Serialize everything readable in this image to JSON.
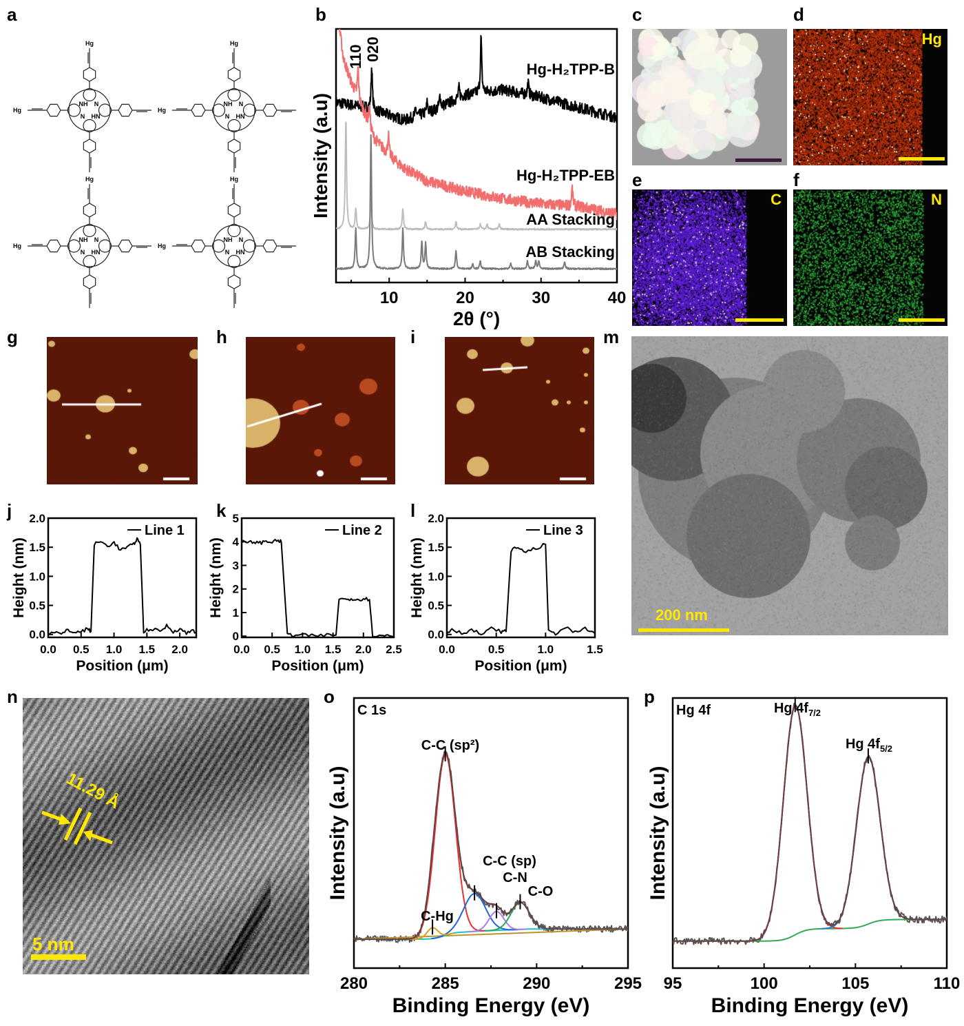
{
  "panel_letters": [
    "a",
    "b",
    "c",
    "d",
    "e",
    "f",
    "g",
    "h",
    "i",
    "m",
    "j",
    "k",
    "l",
    "n",
    "o",
    "p"
  ],
  "structure": {
    "hg_label": "Hg",
    "nh_label": "NH",
    "n_label": "N",
    "hn_label": "HN"
  },
  "eds": {
    "hg": "Hg",
    "c": "C",
    "n": "N"
  },
  "tem": {
    "scale_label": "200 nm"
  },
  "hrtem": {
    "spacing_label": "11.29 Å",
    "scale_label": "5 nm"
  },
  "colors": {
    "accent_yellow": "#ffe800",
    "xrd_eb": "#f26d6d",
    "afm_bg": "#5a1606"
  },
  "chart_data": [
    {
      "type": "line",
      "title": "",
      "xlabel": "2θ (°)",
      "ylabel": "Intensity (a.u)",
      "xlim": [
        3,
        40
      ],
      "ylim": [
        0,
        100
      ],
      "xticks": [
        10,
        20,
        30,
        40
      ],
      "xtick_labels": [
        "10",
        "20",
        "30",
        "40"
      ],
      "annotations": [
        {
          "text": "110",
          "x": 5.9
        },
        {
          "text": "020",
          "x": 7.6
        }
      ],
      "series": [
        {
          "name": "Hg-H₂TPP-B",
          "color": "#000000",
          "noise": 2.2,
          "background": [
            [
              3,
              71
            ],
            [
              5,
              70
            ],
            [
              7,
              69
            ],
            [
              12,
              64
            ],
            [
              16,
              68
            ],
            [
              20,
              74
            ],
            [
              25,
              76
            ],
            [
              30,
              73
            ],
            [
              35,
              69
            ],
            [
              40,
              65
            ]
          ],
          "peaks": [
            [
              7.7,
              17
            ],
            [
              22.1,
              22
            ],
            [
              28.3,
              5
            ],
            [
              15,
              4
            ],
            [
              16.7,
              5
            ],
            [
              13.5,
              3
            ],
            [
              19.2,
              4
            ]
          ]
        },
        {
          "name": "Hg-H₂TPP-EB",
          "color": "#f26d6d",
          "noise": 2.2,
          "background": [
            [
              3,
              110
            ],
            [
              4,
              88
            ],
            [
              5,
              79
            ],
            [
              6,
              72
            ],
            [
              7,
              65
            ],
            [
              8,
              57
            ],
            [
              10,
              50
            ],
            [
              12,
              45
            ],
            [
              15,
              40
            ],
            [
              20,
              36
            ],
            [
              25,
              33
            ],
            [
              30,
              31
            ],
            [
              35,
              30
            ],
            [
              40,
              27
            ]
          ],
          "peaks": [
            [
              5.9,
              12
            ],
            [
              7.4,
              8
            ],
            [
              9.9,
              8
            ],
            [
              34.1,
              7
            ]
          ]
        },
        {
          "name": "AA Stacking",
          "color": "#bdbdbd",
          "noise": 0.3,
          "background": [
            [
              3,
              21
            ],
            [
              40,
              21
            ]
          ],
          "peaks": [
            [
              4.3,
              44
            ],
            [
              5.6,
              8
            ],
            [
              7.6,
              12
            ],
            [
              11.8,
              8
            ],
            [
              14.8,
              3
            ],
            [
              18.8,
              3
            ],
            [
              22,
              2
            ],
            [
              22.9,
              2
            ],
            [
              24.5,
              2
            ]
          ]
        },
        {
          "name": "AB Stacking",
          "color": "#7a7a7a",
          "noise": 0.3,
          "background": [
            [
              3,
              5.4
            ],
            [
              40,
              5.4
            ]
          ],
          "peaks": [
            [
              5.6,
              16
            ],
            [
              7.6,
              53
            ],
            [
              11.8,
              16
            ],
            [
              14.3,
              11
            ],
            [
              14.8,
              10
            ],
            [
              18.8,
              7
            ],
            [
              21,
              2
            ],
            [
              22,
              3
            ],
            [
              26,
              2
            ],
            [
              28.2,
              3
            ],
            [
              29.3,
              3
            ],
            [
              29.7,
              3
            ],
            [
              33.1,
              3
            ]
          ]
        }
      ]
    },
    {
      "type": "line",
      "xlabel": "Position (μm)",
      "ylabel": "Height (nm)",
      "legend": "Line 1",
      "xlim": [
        0,
        2.25
      ],
      "ylim": [
        -0.05,
        2.0
      ],
      "xticks": [
        0,
        0.5,
        1,
        1.5,
        2
      ],
      "xtick_labels": [
        "0.0",
        "0.5",
        "1.0",
        "1.5",
        "2.0"
      ],
      "yticks": [
        0,
        0.5,
        1,
        1.5,
        2
      ],
      "ytick_labels": [
        "0.0",
        "0.5",
        "1.0",
        "1.5",
        "2.0"
      ],
      "points": [
        [
          0,
          0.02
        ],
        [
          0.1,
          0.05
        ],
        [
          0.2,
          0
        ],
        [
          0.3,
          0.08
        ],
        [
          0.4,
          0.03
        ],
        [
          0.5,
          0.05
        ],
        [
          0.6,
          0.1
        ],
        [
          0.65,
          0.05
        ],
        [
          0.7,
          1.55
        ],
        [
          0.8,
          1.6
        ],
        [
          0.9,
          1.52
        ],
        [
          1.0,
          1.58
        ],
        [
          1.1,
          1.45
        ],
        [
          1.2,
          1.5
        ],
        [
          1.3,
          1.55
        ],
        [
          1.35,
          1.65
        ],
        [
          1.4,
          1.55
        ],
        [
          1.45,
          0.05
        ],
        [
          1.55,
          0.1
        ],
        [
          1.7,
          0.05
        ],
        [
          1.8,
          0.15
        ],
        [
          1.9,
          0.05
        ],
        [
          2.0,
          0.1
        ],
        [
          2.1,
          0.02
        ],
        [
          2.2,
          0.08
        ],
        [
          2.25,
          0.03
        ]
      ]
    },
    {
      "type": "line",
      "xlabel": "Position (μm)",
      "ylabel": "Height (nm)",
      "legend": "Line 2",
      "xlim": [
        0,
        2.5
      ],
      "ylim": [
        -0.05,
        5
      ],
      "xticks": [
        0,
        0.5,
        1,
        1.5,
        2,
        2.5
      ],
      "xtick_labels": [
        "0.0",
        "0.5",
        "1.0",
        "1.5",
        "2.0",
        "2.5"
      ],
      "yticks": [
        0,
        1,
        2,
        3,
        4,
        5
      ],
      "ytick_labels": [
        "0",
        "1",
        "2",
        "3",
        "4",
        "5"
      ],
      "points": [
        [
          0,
          4.0
        ],
        [
          0.1,
          3.95
        ],
        [
          0.2,
          4.0
        ],
        [
          0.3,
          3.95
        ],
        [
          0.4,
          4.02
        ],
        [
          0.5,
          4.0
        ],
        [
          0.6,
          4.05
        ],
        [
          0.65,
          4.0
        ],
        [
          0.75,
          0.1
        ],
        [
          0.85,
          0.02
        ],
        [
          1.0,
          0.05
        ],
        [
          1.2,
          0.0
        ],
        [
          1.4,
          0.05
        ],
        [
          1.55,
          0.05
        ],
        [
          1.6,
          1.6
        ],
        [
          1.7,
          1.55
        ],
        [
          1.8,
          1.6
        ],
        [
          1.9,
          1.55
        ],
        [
          2.0,
          1.6
        ],
        [
          2.1,
          1.55
        ],
        [
          2.15,
          0.05
        ],
        [
          2.3,
          0.0
        ],
        [
          2.4,
          0.05
        ],
        [
          2.5,
          0.0
        ]
      ]
    },
    {
      "type": "line",
      "xlabel": "Position (μm)",
      "ylabel": "Height (nm)",
      "legend": "Line 3",
      "xlim": [
        0,
        1.5
      ],
      "ylim": [
        -0.05,
        2.0
      ],
      "xticks": [
        0,
        0.5,
        1,
        1.5
      ],
      "xtick_labels": [
        "0.0",
        "0.5",
        "1.0",
        "1.5"
      ],
      "yticks": [
        0,
        0.5,
        1,
        1.5,
        2
      ],
      "ytick_labels": [
        "0.0",
        "0.5",
        "1.0",
        "1.5",
        "2.0"
      ],
      "points": [
        [
          0,
          0.02
        ],
        [
          0.05,
          0.1
        ],
        [
          0.15,
          0.02
        ],
        [
          0.25,
          0.08
        ],
        [
          0.35,
          0.0
        ],
        [
          0.45,
          0.1
        ],
        [
          0.55,
          0.05
        ],
        [
          0.6,
          0.05
        ],
        [
          0.65,
          1.45
        ],
        [
          0.72,
          1.5
        ],
        [
          0.8,
          1.42
        ],
        [
          0.9,
          1.48
        ],
        [
          1.0,
          1.55
        ],
        [
          1.03,
          0.05
        ],
        [
          1.1,
          0.02
        ],
        [
          1.2,
          0.12
        ],
        [
          1.3,
          0.03
        ],
        [
          1.4,
          0.1
        ],
        [
          1.5,
          0.02
        ]
      ]
    },
    {
      "type": "line",
      "title": "C 1s",
      "xlabel": "Binding Energy (eV)",
      "ylabel": "Intensity (a.u)",
      "xlim": [
        280,
        295
      ],
      "ylim": [
        0,
        1
      ],
      "xticks": [
        280,
        285,
        290,
        295
      ],
      "xtick_labels": [
        "280",
        "285",
        "290",
        "295"
      ],
      "background": [
        [
          280,
          0.107
        ],
        [
          295,
          0.145
        ]
      ],
      "components": [
        {
          "name": "C-C (sp²)",
          "center": 285.0,
          "amplitude": 0.67,
          "sigma": 0.55,
          "color": "#e83030"
        },
        {
          "name": "C-C (sp)",
          "center": 286.6,
          "amplitude": 0.14,
          "sigma": 0.6,
          "color": "#2266dd"
        },
        {
          "name": "C-N",
          "center": 287.8,
          "amplitude": 0.07,
          "sigma": 0.4,
          "color": "#b07ae8"
        },
        {
          "name": "C-O",
          "center": 289.1,
          "amplitude": 0.1,
          "sigma": 0.5,
          "color": "#22aa55"
        },
        {
          "name": "C-Hg",
          "center": 284.3,
          "amplitude": 0.04,
          "sigma": 0.3,
          "color": "#d4a017"
        }
      ]
    },
    {
      "type": "line",
      "title": "Hg 4f",
      "xlabel": "Binding Energy (eV)",
      "ylabel": "Intensity (a.u)",
      "xlim": [
        95,
        110
      ],
      "ylim": [
        0,
        1
      ],
      "xticks": [
        95,
        100,
        105,
        110
      ],
      "xtick_labels": [
        "95",
        "100",
        "105",
        "110"
      ],
      "background": [
        [
          95,
          0.1
        ],
        [
          110,
          0.18
        ]
      ],
      "components": [
        {
          "name": "Hg 4f",
          "sub": "7/2",
          "center": 101.7,
          "amplitude": 0.85,
          "sigma": 0.65,
          "color": "#e83030"
        },
        {
          "name": "Hg 4f",
          "sub": "5/2",
          "center": 105.7,
          "amplitude": 0.62,
          "sigma": 0.65,
          "color": "#2277dd"
        }
      ]
    }
  ]
}
